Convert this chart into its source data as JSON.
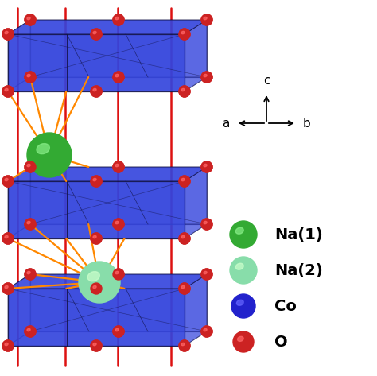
{
  "background_color": "#ffffff",
  "slab_color": "#2233cc",
  "slab_face_color": "#3344dd",
  "slab_alpha": 0.85,
  "red_line_color": "#dd1111",
  "orange_bond_color": "#ff8800",
  "dark_bond_color": "#882200",
  "na1_base": "#33aa33",
  "na1_highlight": "#88ee88",
  "na2_base": "#88ddaa",
  "na2_highlight": "#ccffcc",
  "co_base": "#2222cc",
  "co_highlight": "#6666ff",
  "o_base": "#cc2222",
  "o_highlight": "#ff6666",
  "legend_labels": [
    "Na(1)",
    "Na(2)",
    "Co",
    "O"
  ],
  "legend_bases": [
    "#33aa33",
    "#88ddaa",
    "#2222cc",
    "#cc2222"
  ],
  "legend_highlights": [
    "#88ee88",
    "#ccffcc",
    "#6666ff",
    "#ff6666"
  ]
}
